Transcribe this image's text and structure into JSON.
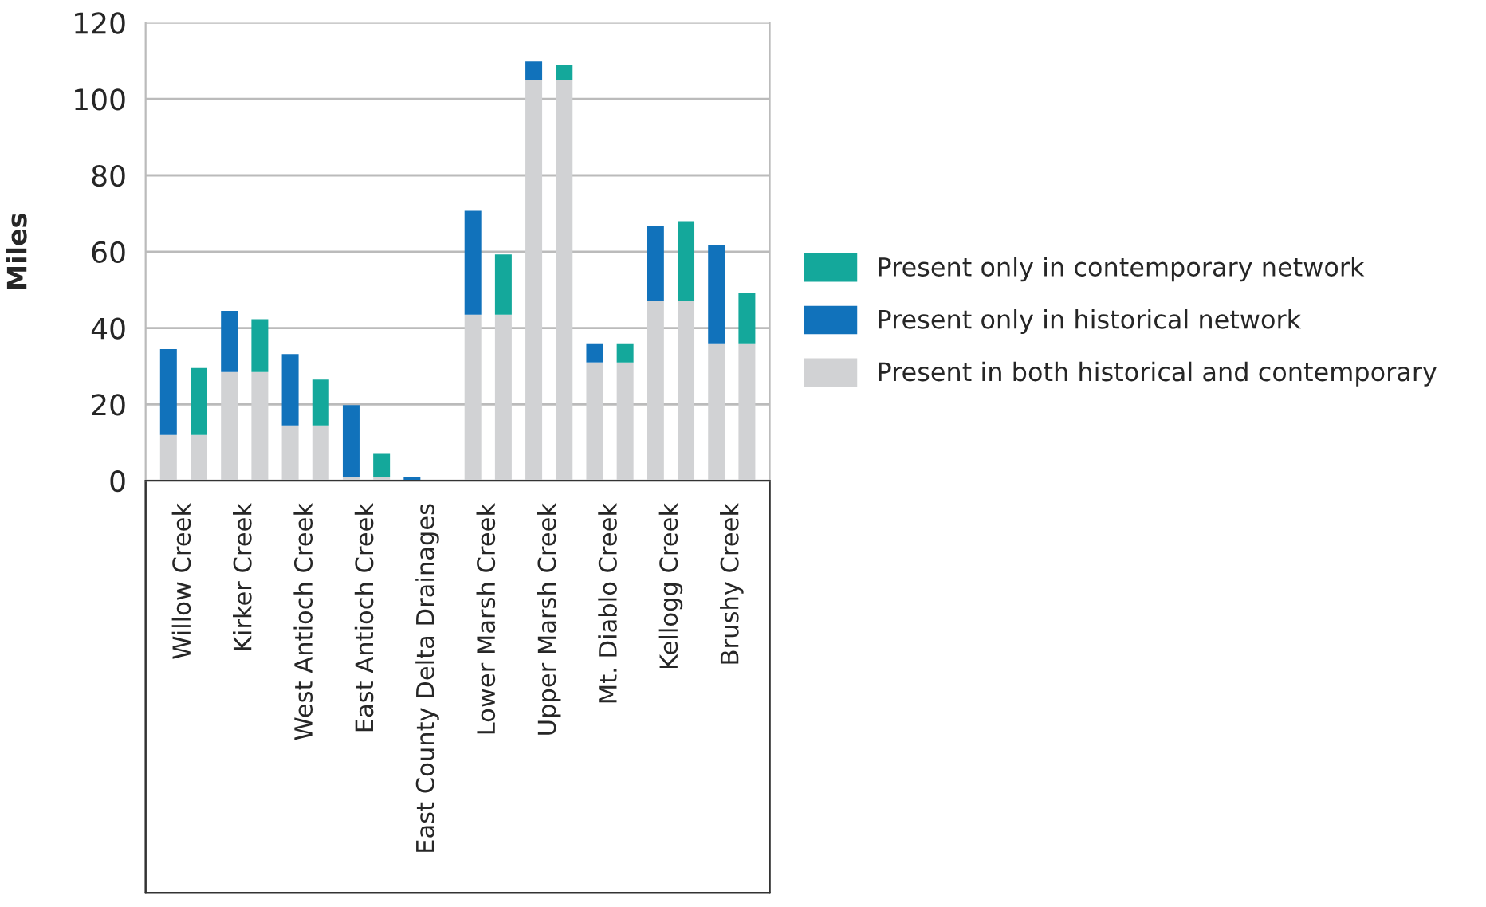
{
  "chart_data": {
    "type": "bar",
    "stacked": true,
    "ylabel": "Miles",
    "categories": [
      "Willow Creek",
      null,
      "Kirker Creek",
      null,
      "West Antioch Creek",
      null,
      "East Antioch Creek",
      null,
      "East County Delta Drainages",
      null,
      "Lower Marsh Creek",
      null,
      "Upper Marsh Creek",
      null,
      "Mt. Diablo Creek",
      null,
      "Kellogg Creek",
      null,
      "Brushy Creek",
      null
    ],
    "series": [
      {
        "name": "Present in both historical and contemporary",
        "color": "#d1d2d4",
        "values": [
          12,
          12,
          28.5,
          28.5,
          14.5,
          14.5,
          1,
          1,
          0,
          0,
          43.5,
          43.5,
          105,
          105,
          31,
          31,
          47,
          47,
          36,
          36
        ]
      },
      {
        "name": "Present only in historical network",
        "color": "#1172bb",
        "values": [
          22.5,
          null,
          16,
          null,
          18.7,
          null,
          18.8,
          null,
          1,
          null,
          27.2,
          null,
          4.8,
          null,
          5,
          null,
          19.8,
          null,
          25.7,
          null
        ]
      },
      {
        "name": "Present only in contemporary network",
        "color": "#14a89b",
        "values": [
          null,
          17.5,
          null,
          13.8,
          null,
          12,
          null,
          6,
          null,
          0,
          null,
          15.8,
          null,
          4,
          null,
          5,
          null,
          21,
          null,
          13.3
        ]
      }
    ],
    "ylim": [
      0,
      120
    ],
    "yticks": [
      0,
      20,
      40,
      60,
      80,
      100,
      120
    ],
    "grid": "y",
    "legend": "right"
  }
}
